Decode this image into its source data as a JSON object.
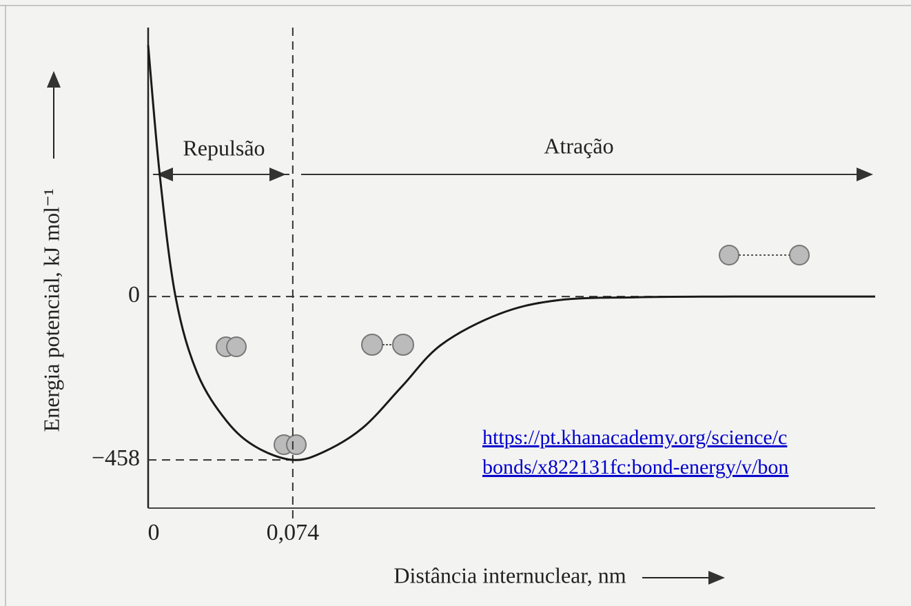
{
  "chart_data": {
    "type": "line",
    "x_label": "Distância internuclear, nm",
    "y_label": "Energia potencial, kJ mol⁻¹",
    "annotations": [
      "Repulsão",
      "Atração"
    ],
    "source_link": [
      "https://pt.khanacademy.org/science/c",
      "bonds/x822131fc:bond-energy/v/bon"
    ],
    "x": [
      0,
      0.006,
      0.014,
      0.025,
      0.04,
      0.055,
      0.074,
      0.09,
      0.11,
      0.13,
      0.15,
      0.18,
      0.21,
      0.25,
      0.3,
      0.372
    ],
    "values": [
      705,
      338,
      0,
      -213,
      -348,
      -421,
      -458,
      -435,
      -367,
      -251,
      -135,
      -48,
      -10,
      -2,
      0,
      0
    ],
    "color": "#1a1a1a",
    "xlim": [
      0,
      0.372
    ],
    "ylim": [
      -593,
      754
    ],
    "xticks": [
      0,
      {
        "value": 0.074,
        "label": "0,074"
      }
    ],
    "yticks": [
      0,
      {
        "value": -458,
        "label": "−458"
      }
    ],
    "grid": true
  }
}
